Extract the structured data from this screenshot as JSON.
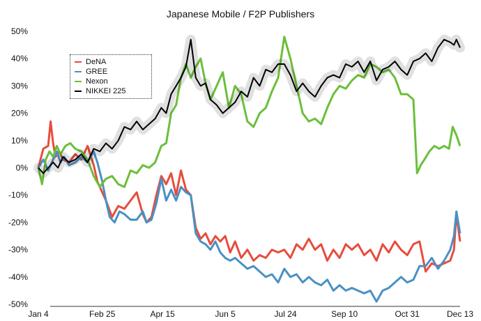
{
  "chart_data": {
    "type": "line",
    "title": "Japanese Mobile / F2P Publishers",
    "xlabel": "",
    "ylabel": "",
    "ylim": [
      -50,
      50
    ],
    "yticks": [
      50,
      40,
      30,
      20,
      10,
      0,
      -10,
      -20,
      -30,
      -40,
      -50
    ],
    "ytick_labels": [
      "50%",
      "40%",
      "30%",
      "20%",
      "10%",
      "0%",
      "-10%",
      "-20%",
      "-30%",
      "-40%",
      "-50%"
    ],
    "x_range": [
      0,
      343
    ],
    "xticks": [
      0,
      52,
      101,
      152,
      201,
      249,
      300,
      343
    ],
    "xtick_labels": [
      "Jan 4",
      "Feb 25",
      "Apr 15",
      "Jun 5",
      "Jul 24",
      "Sep 10",
      "Oct 31",
      "Dec 13"
    ],
    "grid": false,
    "legend_position": "top-left",
    "series": [
      {
        "name": "DeNA",
        "color": "#e74c3c",
        "x": [
          0,
          4,
          8,
          10,
          12,
          14,
          17,
          20,
          25,
          30,
          35,
          40,
          45,
          48,
          52,
          55,
          60,
          65,
          70,
          75,
          80,
          85,
          88,
          92,
          96,
          100,
          104,
          108,
          112,
          116,
          120,
          124,
          128,
          132,
          136,
          140,
          144,
          148,
          152,
          156,
          160,
          165,
          170,
          175,
          180,
          185,
          190,
          195,
          200,
          205,
          210,
          215,
          220,
          225,
          230,
          235,
          240,
          245,
          250,
          255,
          260,
          265,
          270,
          275,
          280,
          285,
          290,
          295,
          300,
          305,
          310,
          315,
          320,
          325,
          330,
          335,
          338,
          340,
          343
        ],
        "y": [
          0,
          7,
          8,
          17,
          9,
          4,
          6,
          3,
          2,
          5,
          3,
          8,
          1,
          -5,
          -9,
          -12,
          -18,
          -14,
          -15,
          -12,
          -9,
          -17,
          -20,
          -18,
          -10,
          -3,
          -6,
          -2,
          -10,
          -1,
          -8,
          -10,
          -22,
          -26,
          -24,
          -28,
          -25,
          -27,
          -25,
          -31,
          -27,
          -33,
          -30,
          -34,
          -32,
          -33,
          -30,
          -31,
          -30,
          -33,
          -28,
          -30,
          -26,
          -30,
          -28,
          -34,
          -30,
          -33,
          -28,
          -30,
          -28,
          -32,
          -30,
          -34,
          -28,
          -31,
          -27,
          -30,
          -32,
          -28,
          -27,
          -38,
          -35,
          -36,
          -35,
          -34,
          -30,
          -17,
          -27
        ]
      },
      {
        "name": "GREE",
        "color": "#4a90c4",
        "x": [
          0,
          4,
          8,
          12,
          15,
          18,
          21,
          25,
          30,
          35,
          40,
          45,
          48,
          52,
          55,
          58,
          62,
          66,
          70,
          75,
          80,
          85,
          88,
          92,
          96,
          100,
          104,
          108,
          112,
          116,
          120,
          124,
          128,
          132,
          136,
          140,
          144,
          148,
          152,
          156,
          160,
          165,
          170,
          175,
          180,
          185,
          190,
          195,
          200,
          205,
          210,
          215,
          220,
          225,
          230,
          235,
          240,
          245,
          250,
          255,
          260,
          265,
          270,
          275,
          280,
          285,
          290,
          295,
          300,
          305,
          310,
          315,
          320,
          325,
          330,
          335,
          338,
          340,
          343
        ],
        "y": [
          0,
          3,
          -1,
          3,
          6,
          2,
          4,
          1,
          2,
          4,
          2,
          6,
          2,
          -5,
          -12,
          -18,
          -20,
          -16,
          -17,
          -19,
          -19,
          -16,
          -20,
          -19,
          -13,
          -4,
          -12,
          -8,
          -12,
          -7,
          -9,
          -10,
          -24,
          -27,
          -28,
          -30,
          -27,
          -31,
          -33,
          -34,
          -33,
          -35,
          -37,
          -36,
          -38,
          -40,
          -39,
          -42,
          -37,
          -40,
          -39,
          -42,
          -40,
          -42,
          -43,
          -41,
          -45,
          -43,
          -45,
          -44,
          -45,
          -46,
          -45,
          -49,
          -45,
          -44,
          -42,
          -40,
          -42,
          -41,
          -36,
          -36,
          -33,
          -37,
          -34,
          -30,
          -25,
          -16,
          -24
        ]
      },
      {
        "name": "Nexon",
        "color": "#6bbf3a",
        "x": [
          0,
          3,
          6,
          9,
          12,
          15,
          18,
          22,
          26,
          30,
          35,
          40,
          45,
          50,
          55,
          60,
          65,
          70,
          75,
          80,
          85,
          90,
          95,
          100,
          104,
          108,
          112,
          116,
          120,
          124,
          128,
          132,
          136,
          140,
          145,
          150,
          155,
          160,
          165,
          170,
          175,
          180,
          185,
          190,
          195,
          200,
          205,
          210,
          215,
          220,
          225,
          230,
          235,
          240,
          245,
          250,
          255,
          260,
          265,
          270,
          275,
          280,
          285,
          290,
          295,
          300,
          305,
          308,
          311,
          314,
          318,
          322,
          326,
          330,
          334,
          337,
          340,
          343
        ],
        "y": [
          0,
          -6,
          3,
          6,
          4,
          8,
          5,
          8,
          9,
          7,
          6,
          3,
          -3,
          -7,
          -4,
          -3,
          -6,
          -7,
          -1,
          -2,
          1,
          0,
          2,
          8,
          9,
          20,
          23,
          33,
          38,
          33,
          37,
          40,
          31,
          25,
          30,
          35,
          22,
          30,
          27,
          17,
          15,
          20,
          22,
          28,
          33,
          48,
          40,
          30,
          20,
          17,
          18,
          16,
          22,
          27,
          30,
          29,
          32,
          34,
          33,
          38,
          37,
          35,
          36,
          33,
          27,
          27,
          25,
          -2,
          1,
          3,
          6,
          8,
          7,
          8,
          7,
          15,
          12,
          8
        ]
      },
      {
        "name": "NIKKEI 225",
        "color": "#000000",
        "x": [
          0,
          4,
          8,
          12,
          16,
          20,
          25,
          30,
          35,
          40,
          45,
          50,
          55,
          60,
          65,
          70,
          75,
          80,
          85,
          90,
          95,
          100,
          104,
          108,
          112,
          116,
          120,
          124,
          128,
          132,
          136,
          140,
          145,
          150,
          155,
          160,
          165,
          170,
          175,
          180,
          185,
          190,
          195,
          200,
          205,
          210,
          215,
          220,
          225,
          230,
          235,
          240,
          245,
          250,
          255,
          260,
          265,
          270,
          275,
          280,
          285,
          290,
          295,
          300,
          305,
          310,
          315,
          320,
          325,
          330,
          335,
          338,
          340,
          343
        ],
        "y": [
          0,
          -2,
          0,
          2,
          0,
          4,
          2,
          3,
          5,
          2,
          7,
          6,
          9,
          7,
          10,
          15,
          14,
          17,
          14,
          16,
          18,
          22,
          20,
          27,
          30,
          33,
          37,
          47,
          33,
          30,
          31,
          25,
          23,
          20,
          22,
          24,
          28,
          26,
          33,
          30,
          36,
          35,
          38,
          38,
          34,
          28,
          31,
          28,
          26,
          30,
          33,
          34,
          33,
          38,
          37,
          39,
          35,
          39,
          32,
          36,
          37,
          39,
          36,
          34,
          39,
          40,
          42,
          39,
          44,
          47,
          46,
          45,
          47,
          44
        ]
      }
    ]
  }
}
